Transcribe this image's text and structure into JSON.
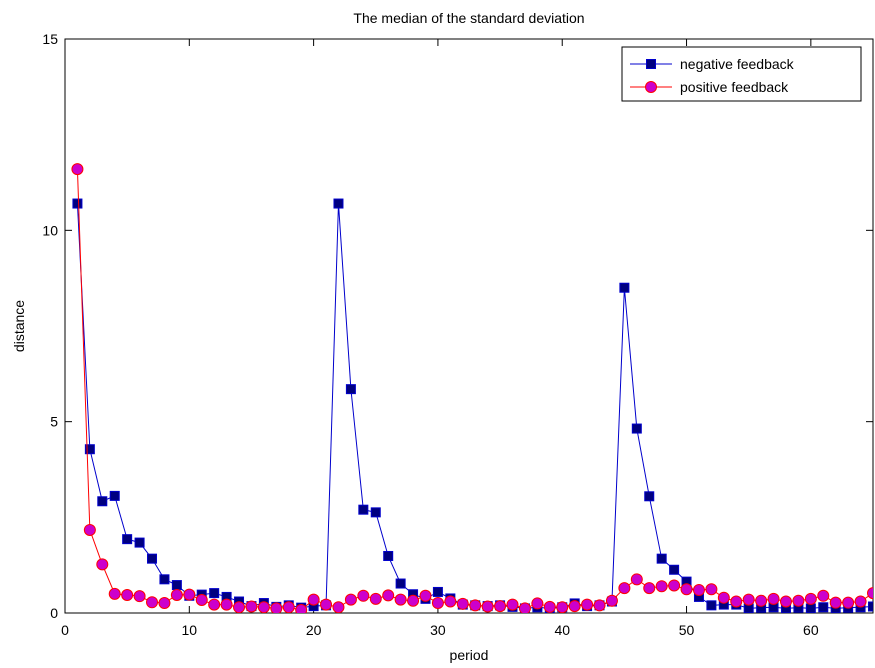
{
  "chart_data": {
    "type": "line",
    "title": "The median of the standard deviation",
    "xlabel": "period",
    "ylabel": "distance",
    "xlim": [
      0,
      65
    ],
    "ylim": [
      0,
      15
    ],
    "xticks": [
      0,
      10,
      20,
      30,
      40,
      50,
      60
    ],
    "yticks": [
      0,
      5,
      10,
      15
    ],
    "grid": false,
    "legend_position": "top-right",
    "x": [
      1,
      2,
      3,
      4,
      5,
      6,
      7,
      8,
      9,
      10,
      11,
      12,
      13,
      14,
      15,
      16,
      17,
      18,
      19,
      20,
      21,
      22,
      23,
      24,
      25,
      26,
      27,
      28,
      29,
      30,
      31,
      32,
      33,
      34,
      35,
      36,
      37,
      38,
      39,
      40,
      41,
      42,
      43,
      44,
      45,
      46,
      47,
      48,
      49,
      50,
      51,
      52,
      53,
      54,
      55,
      56,
      57,
      58,
      59,
      60,
      61,
      62,
      63,
      64,
      65
    ],
    "series": [
      {
        "name": "negative feedback",
        "color": "#0000cc",
        "marker_color": "#000080",
        "marker": "square",
        "values": [
          10.7,
          4.28,
          2.92,
          3.06,
          1.93,
          1.84,
          1.42,
          0.88,
          0.73,
          0.45,
          0.48,
          0.52,
          0.42,
          0.3,
          0.18,
          0.26,
          0.16,
          0.2,
          0.14,
          0.18,
          0.2,
          10.7,
          5.85,
          2.7,
          2.63,
          1.49,
          0.77,
          0.49,
          0.37,
          0.55,
          0.38,
          0.22,
          0.2,
          0.18,
          0.2,
          0.16,
          0.12,
          0.15,
          0.12,
          0.15,
          0.25,
          0.18,
          0.2,
          0.3,
          8.5,
          4.82,
          3.05,
          1.42,
          1.13,
          0.82,
          0.42,
          0.2,
          0.22,
          0.22,
          0.12,
          0.14,
          0.15,
          0.12,
          0.14,
          0.12,
          0.15,
          0.12,
          0.14,
          0.15,
          0.17
        ]
      },
      {
        "name": "positive feedback",
        "color": "#ff0000",
        "marker_color": "#cc00cc",
        "marker": "circle",
        "values": [
          11.6,
          2.17,
          1.27,
          0.5,
          0.47,
          0.44,
          0.28,
          0.26,
          0.47,
          0.48,
          0.34,
          0.22,
          0.22,
          0.15,
          0.17,
          0.15,
          0.12,
          0.15,
          0.08,
          0.35,
          0.22,
          0.15,
          0.35,
          0.45,
          0.37,
          0.46,
          0.35,
          0.32,
          0.45,
          0.26,
          0.3,
          0.24,
          0.2,
          0.17,
          0.18,
          0.22,
          0.12,
          0.25,
          0.16,
          0.15,
          0.18,
          0.22,
          0.2,
          0.32,
          0.65,
          0.88,
          0.65,
          0.7,
          0.72,
          0.62,
          0.6,
          0.62,
          0.4,
          0.3,
          0.35,
          0.32,
          0.37,
          0.3,
          0.32,
          0.37,
          0.45,
          0.27,
          0.27,
          0.3,
          0.52
        ]
      }
    ]
  }
}
